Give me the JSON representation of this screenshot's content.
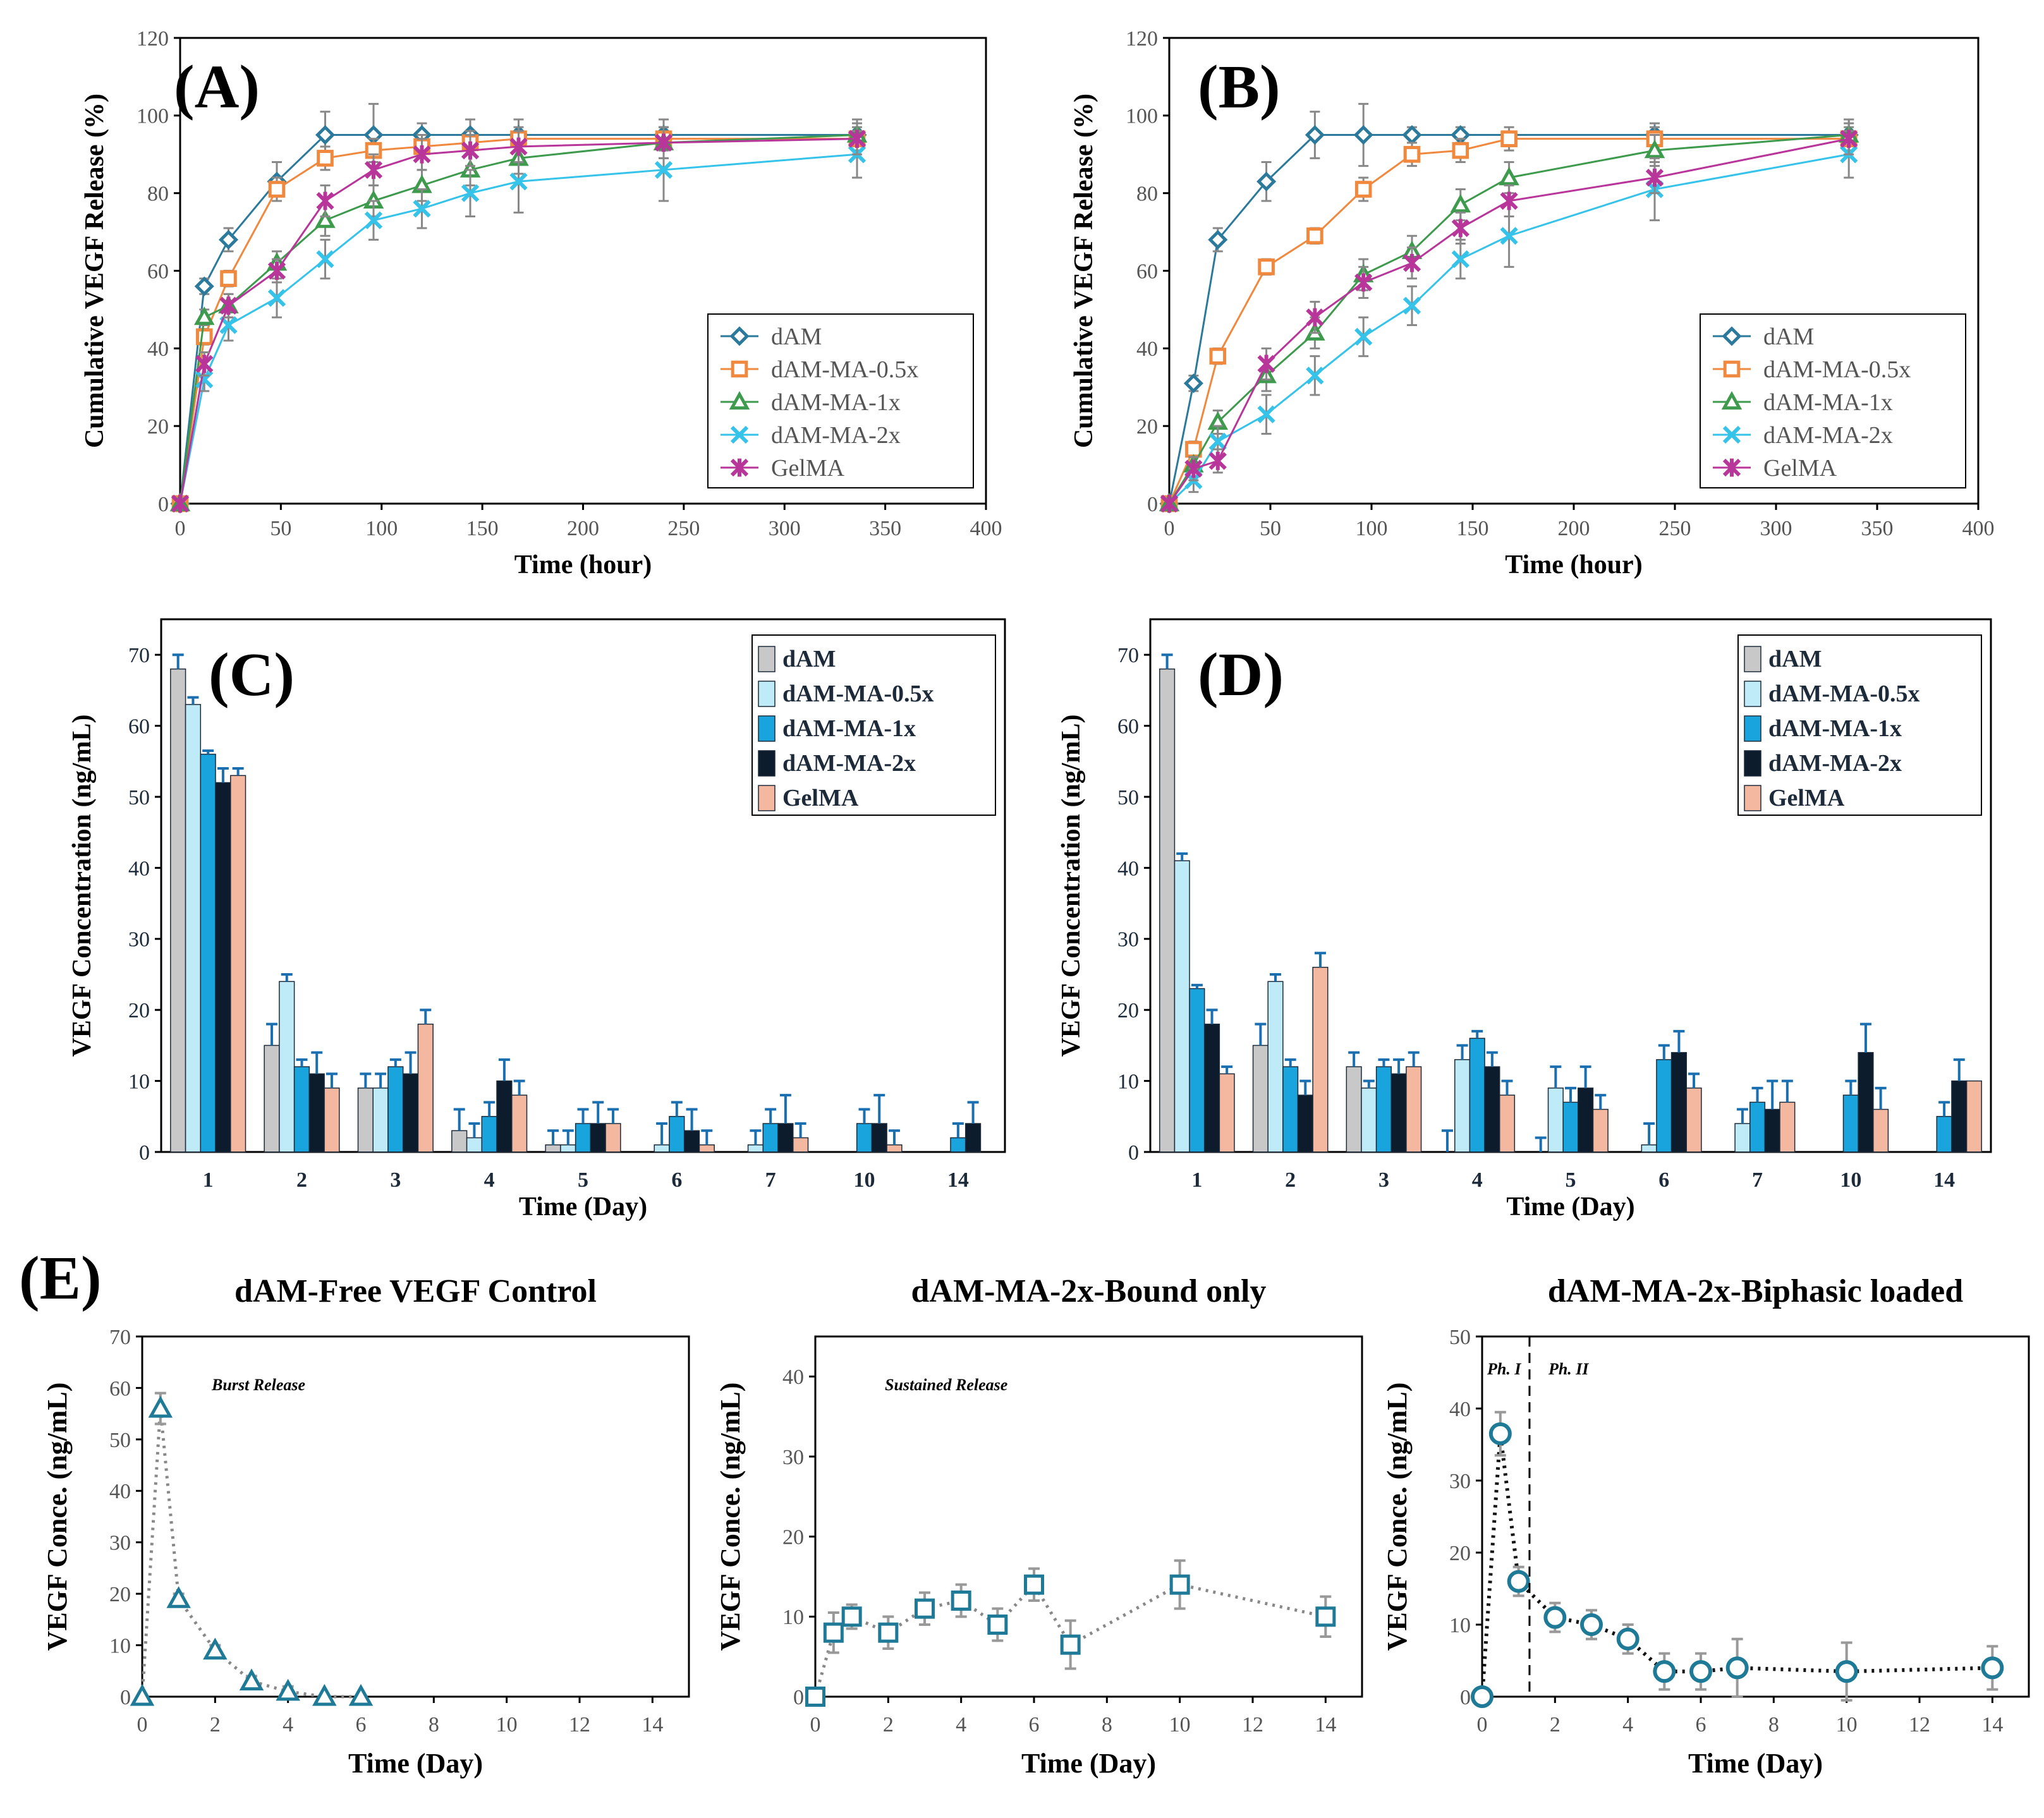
{
  "colors": {
    "dAM": "#2b7a9b",
    "dAM-MA-0.5x": "#f0883e",
    "dAM-MA-1x": "#3e9a4d",
    "dAM-MA-2x": "#36c3ea",
    "GelMA": "#b8359a",
    "bar_dAM": "#c8c8c8",
    "bar_dAM-MA-0.5x": "#bfeaf7",
    "bar_dAM-MA-1x": "#1aa4dd",
    "bar_dAM-MA-2x": "#0d1c2c",
    "bar_GelMA": "#f4b7a0",
    "errbar_C": "#1a6fb0",
    "errbar_cum": "#888888",
    "teal": "#1e7a96",
    "axis": "#000000"
  },
  "chart_data": [
    {
      "panel": "A",
      "type": "line",
      "title": "",
      "xlabel": "Time (hour)",
      "ylabel": "Cumulative VEGF Release (%)",
      "xlim": [
        0,
        400
      ],
      "ylim": [
        0,
        120
      ],
      "xticks": [
        0,
        50,
        100,
        150,
        200,
        250,
        300,
        350,
        400
      ],
      "yticks": [
        0,
        20,
        40,
        60,
        80,
        100,
        120
      ],
      "legend": "bottom-right",
      "series": [
        {
          "name": "dAM",
          "marker": "diamond",
          "x": [
            0,
            12,
            24,
            48,
            72,
            96,
            120,
            144,
            168,
            240,
            336
          ],
          "y": [
            0,
            56,
            68,
            83,
            95,
            95,
            95,
            95,
            95,
            95,
            95
          ],
          "err": [
            0,
            2,
            3,
            5,
            6,
            8,
            3,
            4,
            4,
            4,
            4
          ]
        },
        {
          "name": "dAM-MA-0.5x",
          "marker": "square",
          "x": [
            0,
            12,
            24,
            48,
            72,
            96,
            120,
            144,
            168,
            240,
            336
          ],
          "y": [
            0,
            43,
            58,
            81,
            89,
            91,
            92,
            93,
            94,
            94,
            94
          ],
          "err": [
            0,
            2,
            2,
            3,
            3,
            3,
            3,
            3,
            3,
            3,
            3
          ]
        },
        {
          "name": "dAM-MA-1x",
          "marker": "triangle",
          "x": [
            0,
            12,
            24,
            48,
            72,
            96,
            120,
            144,
            168,
            240,
            336
          ],
          "y": [
            0,
            48,
            51,
            62,
            73,
            78,
            82,
            86,
            89,
            93,
            95
          ],
          "err": [
            0,
            2,
            3,
            3,
            4,
            4,
            4,
            4,
            4,
            4,
            4
          ]
        },
        {
          "name": "dAM-MA-2x",
          "marker": "x",
          "x": [
            0,
            12,
            24,
            48,
            72,
            96,
            120,
            144,
            168,
            240,
            336
          ],
          "y": [
            0,
            32,
            46,
            53,
            63,
            73,
            76,
            80,
            83,
            86,
            90
          ],
          "err": [
            0,
            3,
            4,
            5,
            5,
            5,
            5,
            6,
            8,
            8,
            6
          ]
        },
        {
          "name": "GelMA",
          "marker": "star",
          "x": [
            0,
            12,
            24,
            48,
            72,
            96,
            120,
            144,
            168,
            240,
            336
          ],
          "y": [
            0,
            36,
            51,
            60,
            78,
            86,
            90,
            91,
            92,
            93,
            94
          ],
          "err": [
            0,
            3,
            3,
            3,
            4,
            4,
            4,
            4,
            4,
            4,
            4
          ]
        }
      ]
    },
    {
      "panel": "B",
      "type": "line",
      "title": "",
      "xlabel": "Time (hour)",
      "ylabel": "Cumulative VEGF Release (%)",
      "xlim": [
        0,
        400
      ],
      "ylim": [
        0,
        120
      ],
      "xticks": [
        0,
        50,
        100,
        150,
        200,
        250,
        300,
        350,
        400
      ],
      "yticks": [
        0,
        20,
        40,
        60,
        80,
        100,
        120
      ],
      "legend": "bottom-right",
      "series": [
        {
          "name": "dAM",
          "marker": "diamond",
          "x": [
            0,
            12,
            24,
            48,
            72,
            96,
            120,
            144,
            240,
            336
          ],
          "y": [
            0,
            31,
            68,
            83,
            95,
            95,
            95,
            95,
            95,
            95
          ],
          "err": [
            0,
            2,
            3,
            5,
            6,
            8,
            2,
            2,
            3,
            4
          ]
        },
        {
          "name": "dAM-MA-0.5x",
          "marker": "square",
          "x": [
            0,
            12,
            24,
            48,
            72,
            96,
            120,
            144,
            168,
            240,
            336
          ],
          "y": [
            0,
            14,
            38,
            61,
            69,
            81,
            90,
            91,
            94,
            94,
            94
          ],
          "err": [
            0,
            2,
            2,
            2,
            2,
            3,
            3,
            3,
            3,
            3,
            3
          ]
        },
        {
          "name": "dAM-MA-1x",
          "marker": "triangle",
          "x": [
            0,
            12,
            24,
            48,
            72,
            96,
            120,
            144,
            168,
            240,
            336
          ],
          "y": [
            0,
            10,
            21,
            33,
            44,
            59,
            65,
            77,
            84,
            91,
            95
          ],
          "err": [
            0,
            2,
            3,
            4,
            4,
            4,
            4,
            4,
            4,
            4,
            4
          ]
        },
        {
          "name": "dAM-MA-2x",
          "marker": "x",
          "x": [
            0,
            12,
            24,
            48,
            72,
            96,
            120,
            144,
            168,
            240,
            336
          ],
          "y": [
            0,
            6,
            16,
            23,
            33,
            43,
            51,
            63,
            69,
            81,
            90
          ],
          "err": [
            0,
            3,
            4,
            5,
            5,
            5,
            5,
            5,
            8,
            8,
            6
          ]
        },
        {
          "name": "GelMA",
          "marker": "star",
          "x": [
            0,
            12,
            24,
            48,
            72,
            96,
            120,
            144,
            168,
            240,
            336
          ],
          "y": [
            0,
            9,
            11,
            36,
            48,
            57,
            62,
            71,
            78,
            84,
            94
          ],
          "err": [
            0,
            3,
            3,
            4,
            4,
            4,
            4,
            4,
            4,
            4,
            4
          ]
        }
      ]
    },
    {
      "panel": "C",
      "type": "bar",
      "xlabel": "Time (Day)",
      "ylabel": "VEGF Concentration  (ng/mL)",
      "ylim": [
        0,
        75
      ],
      "yticks": [
        0,
        10,
        20,
        30,
        40,
        50,
        60,
        70
      ],
      "categories": [
        "1",
        "2",
        "3",
        "4",
        "5",
        "6",
        "7",
        "10",
        "14"
      ],
      "legend": "top-right",
      "series": [
        {
          "name": "dAM",
          "values": [
            68,
            15,
            9,
            3,
            1,
            0,
            0,
            0,
            0
          ],
          "err": [
            2,
            3,
            2,
            3,
            2,
            0,
            0,
            0,
            0
          ]
        },
        {
          "name": "dAM-MA-0.5x",
          "values": [
            63,
            24,
            9,
            2,
            1,
            1,
            1,
            0,
            0
          ],
          "err": [
            1,
            1,
            2,
            2,
            2,
            3,
            2,
            0,
            0
          ]
        },
        {
          "name": "dAM-MA-1x",
          "values": [
            56,
            12,
            12,
            5,
            4,
            5,
            4,
            4,
            2
          ],
          "err": [
            0.5,
            1,
            1,
            2,
            2,
            2,
            2,
            2,
            2
          ]
        },
        {
          "name": "dAM-MA-2x",
          "values": [
            52,
            11,
            11,
            10,
            4,
            3,
            4,
            4,
            4
          ],
          "err": [
            2,
            3,
            3,
            3,
            3,
            3,
            4,
            4,
            3
          ]
        },
        {
          "name": "GelMA",
          "values": [
            53,
            9,
            18,
            8,
            4,
            1,
            2,
            1,
            0
          ],
          "err": [
            1,
            2,
            2,
            2,
            2,
            2,
            2,
            2,
            0
          ]
        }
      ]
    },
    {
      "panel": "D",
      "type": "bar",
      "xlabel": "Time (Day)",
      "ylabel": "VEGF Concentration  (ng/mL)",
      "ylim": [
        0,
        75
      ],
      "yticks": [
        0,
        10,
        20,
        30,
        40,
        50,
        60,
        70
      ],
      "categories": [
        "1",
        "2",
        "3",
        "4",
        "5",
        "6",
        "7",
        "10",
        "14"
      ],
      "legend": "top-right",
      "series": [
        {
          "name": "dAM",
          "values": [
            68,
            15,
            12,
            0,
            0,
            0,
            0,
            0,
            0
          ],
          "err": [
            2,
            3,
            2,
            3,
            2,
            0,
            0,
            0,
            0
          ]
        },
        {
          "name": "dAM-MA-0.5x",
          "values": [
            41,
            24,
            9,
            13,
            9,
            1,
            4,
            0,
            0
          ],
          "err": [
            1,
            1,
            1,
            2,
            3,
            3,
            2,
            0,
            0
          ]
        },
        {
          "name": "dAM-MA-1x",
          "values": [
            23,
            12,
            12,
            16,
            7,
            13,
            7,
            8,
            5
          ],
          "err": [
            0.5,
            1,
            1,
            1,
            2,
            2,
            2,
            2,
            2
          ]
        },
        {
          "name": "dAM-MA-2x",
          "values": [
            18,
            8,
            11,
            12,
            9,
            14,
            6,
            14,
            10
          ],
          "err": [
            2,
            2,
            2,
            2,
            3,
            3,
            4,
            4,
            3
          ]
        },
        {
          "name": "GelMA",
          "values": [
            11,
            26,
            12,
            8,
            6,
            9,
            7,
            6,
            10
          ],
          "err": [
            1,
            2,
            2,
            2,
            2,
            2,
            3,
            3,
            0
          ]
        }
      ]
    },
    {
      "panel": "E1",
      "type": "line",
      "title": "dAM-Free VEGF Control",
      "annotation": "Burst Release",
      "xlabel": "Time (Day)",
      "ylabel": "VEGF Conce.  (ng/mL)",
      "xlim": [
        0,
        15
      ],
      "ylim": [
        0,
        70
      ],
      "xticks": [
        0,
        2,
        4,
        6,
        8,
        10,
        12,
        14
      ],
      "yticks": [
        0,
        10,
        20,
        30,
        40,
        50,
        60,
        70
      ],
      "marker": "triangle",
      "x": [
        0,
        0.5,
        1,
        2,
        3,
        4,
        5,
        6
      ],
      "y": [
        0,
        56,
        19,
        9,
        3,
        1,
        0,
        0
      ],
      "err": [
        0,
        3,
        1,
        1,
        1,
        1,
        0,
        0
      ]
    },
    {
      "panel": "E2",
      "type": "line",
      "title": "dAM-MA-2x-Bound  only",
      "annotation": "Sustained Release",
      "xlabel": "Time (Day)",
      "ylabel": "VEGF Conce.  (ng/mL)",
      "xlim": [
        0,
        15
      ],
      "ylim": [
        0,
        45
      ],
      "xticks": [
        0,
        2,
        4,
        6,
        8,
        10,
        12,
        14
      ],
      "yticks": [
        0,
        10,
        20,
        30,
        40
      ],
      "marker": "square",
      "x": [
        0,
        0.5,
        1,
        2,
        3,
        4,
        5,
        6,
        7,
        10,
        14
      ],
      "y": [
        0,
        8,
        10,
        8,
        11,
        12,
        9,
        14,
        6.5,
        14,
        10
      ],
      "err": [
        0,
        2.5,
        1.5,
        2,
        2,
        2,
        2,
        2,
        3,
        3,
        2.5
      ]
    },
    {
      "panel": "E3",
      "type": "line",
      "title": "dAM-MA-2x-Biphasic  loaded",
      "annotations": [
        "Ph. I",
        "Ph. II"
      ],
      "phase_boundary_day": 1.3,
      "xlabel": "Time (Day)",
      "ylabel": "VEGF Conce.  (ng/mL)",
      "xlim": [
        0,
        15
      ],
      "ylim": [
        0,
        50
      ],
      "xticks": [
        0,
        2,
        4,
        6,
        8,
        10,
        12,
        14
      ],
      "yticks": [
        0,
        10,
        20,
        30,
        40,
        50
      ],
      "marker": "circle",
      "x": [
        0,
        0.5,
        1,
        2,
        3,
        4,
        5,
        6,
        7,
        10,
        14
      ],
      "y": [
        0,
        36.5,
        16,
        11,
        10,
        8,
        3.5,
        3.5,
        4,
        3.5,
        4
      ],
      "err": [
        0,
        3,
        2,
        2,
        2,
        2,
        2.5,
        2.5,
        4,
        4,
        3
      ]
    }
  ],
  "panel_labels": [
    "(A)",
    "(B)",
    "(C)",
    "(D)",
    "(E)"
  ]
}
